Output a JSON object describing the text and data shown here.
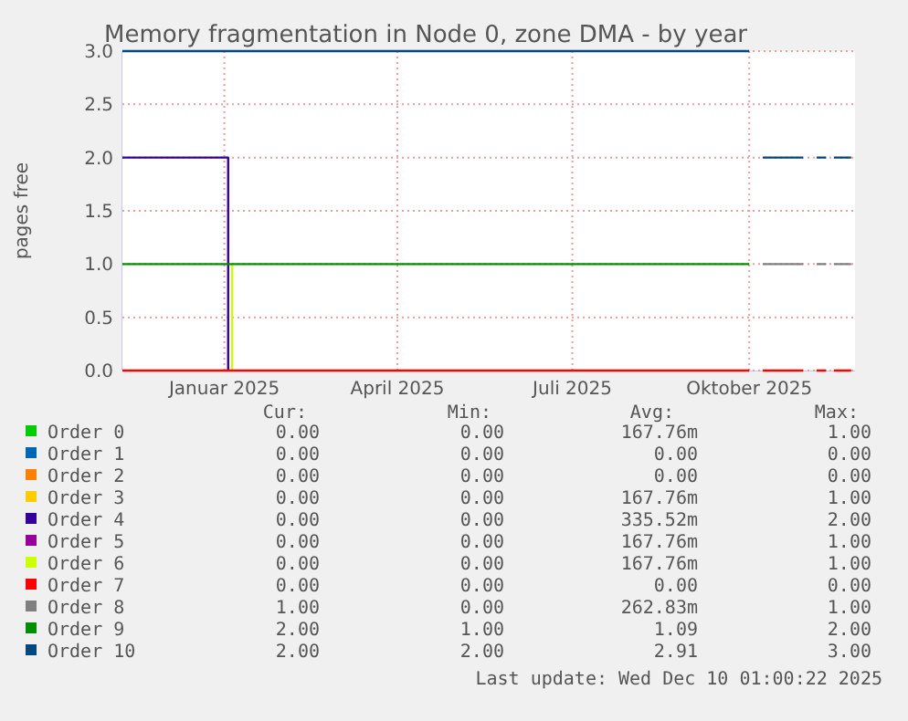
{
  "chart_data": {
    "type": "line",
    "title": "Memory fragmentation in Node 0, zone DMA - by year",
    "ylabel": "pages free",
    "xlim": [
      "2024-11-09",
      "2025-11-25"
    ],
    "xticks": [
      {
        "value": "2025-01-01",
        "label": "Januar 2025"
      },
      {
        "value": "2025-04-01",
        "label": "April 2025"
      },
      {
        "value": "2025-07-01",
        "label": "Juli 2025"
      },
      {
        "value": "2025-10-01",
        "label": "Oktober 2025"
      }
    ],
    "ylim": [
      0,
      3
    ],
    "yticks": [
      {
        "value": 0,
        "label": "0.0"
      },
      {
        "value": 0.5,
        "label": "0.5"
      },
      {
        "value": 1,
        "label": "1.0"
      },
      {
        "value": 1.5,
        "label": "1.5"
      },
      {
        "value": 2,
        "label": "2.0"
      },
      {
        "value": 2.5,
        "label": "2.5"
      },
      {
        "value": 3,
        "label": "3.0"
      }
    ],
    "grid": true,
    "legend": "bottom",
    "series": [
      {
        "name": "Order 0",
        "color": "#00cc00"
      },
      {
        "name": "Order 1",
        "color": "#0066b3"
      },
      {
        "name": "Order 2",
        "color": "#ff8000"
      },
      {
        "name": "Order 3",
        "color": "#ffcc00"
      },
      {
        "name": "Order 4",
        "color": "#330099",
        "x": [
          "2024-11-09",
          "2025-01-03",
          "2025-01-03"
        ],
        "values": [
          2,
          2,
          0
        ]
      },
      {
        "name": "Order 5",
        "color": "#990099"
      },
      {
        "name": "Order 6",
        "color": "#ccff00",
        "x": [
          "2025-01-05",
          "2025-01-05"
        ],
        "values": [
          1,
          0
        ]
      },
      {
        "name": "Order 7",
        "color": "#ff0000",
        "x": [
          "2024-11-09",
          "2025-10-01",
          "2025-10-04",
          "2025-10-08",
          "2025-10-29",
          "2025-11-01",
          "2025-11-05",
          "2025-11-10",
          "2025-11-12",
          "2025-11-14",
          "2025-11-23"
        ],
        "values": [
          0,
          0,
          null,
          0,
          0,
          null,
          0,
          0,
          null,
          0,
          0
        ]
      },
      {
        "name": "Order 8",
        "color": "#808080",
        "x": [
          "2025-10-08",
          "2025-10-29",
          "2025-11-01",
          "2025-11-05",
          "2025-11-10",
          "2025-11-12",
          "2025-11-14",
          "2025-11-23"
        ],
        "values": [
          1,
          1,
          null,
          1,
          1,
          null,
          1,
          1
        ]
      },
      {
        "name": "Order 9",
        "color": "#008f00",
        "x": [
          "2024-11-09",
          "2025-10-01"
        ],
        "values": [
          1,
          1
        ]
      },
      {
        "name": "Order 10",
        "color": "#00487d",
        "x": [
          "2024-11-09",
          "2025-10-01",
          "2025-10-04",
          "2025-10-08",
          "2025-10-29",
          "2025-11-01",
          "2025-11-05",
          "2025-11-10",
          "2025-11-12",
          "2025-11-14",
          "2025-11-23"
        ],
        "values": [
          3,
          3,
          null,
          2,
          2,
          null,
          2,
          2,
          null,
          2,
          2
        ]
      }
    ],
    "annotations": [
      "Cur:",
      "Min:",
      "Avg:",
      "Max:",
      "0.00",
      "0.00",
      "167.76m",
      "1.00",
      "0.00",
      "0.00",
      "0.00",
      "0.00",
      "0.00",
      "0.00",
      "0.00",
      "0.00",
      "0.00",
      "0.00",
      "167.76m",
      "1.00",
      "0.00",
      "0.00",
      "335.52m",
      "2.00",
      "0.00",
      "0.00",
      "167.76m",
      "1.00",
      "0.00",
      "0.00",
      "167.76m",
      "1.00",
      "0.00",
      "0.00",
      "0.00",
      "0.00",
      "1.00",
      "0.00",
      "262.83m",
      "1.00",
      "2.00",
      "1.00",
      "1.09",
      "2.00",
      "2.00",
      "2.00",
      "2.91",
      "3.00",
      "Last update: Wed Dec 10 01:00:22 2025"
    ]
  }
}
